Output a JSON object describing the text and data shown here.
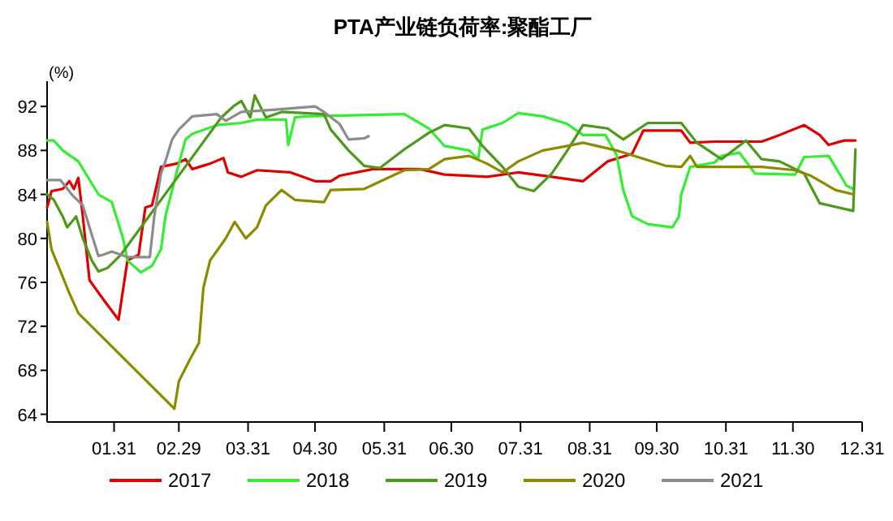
{
  "chart_data": {
    "type": "line",
    "title": "PTA产业链负荷率:聚酯工厂",
    "ylabel": "(%)",
    "xlim": [
      "--01-01",
      "--12-31"
    ],
    "xticks": [
      {
        "value": "--01-31",
        "label": "01.31"
      },
      {
        "value": "--02-29",
        "label": "02.29"
      },
      {
        "value": "--03-31",
        "label": "03.31"
      },
      {
        "value": "--04-30",
        "label": "04.30"
      },
      {
        "value": "--05-31",
        "label": "05.31"
      },
      {
        "value": "--06-30",
        "label": "06.30"
      },
      {
        "value": "--07-31",
        "label": "07.31"
      },
      {
        "value": "--08-31",
        "label": "08.31"
      },
      {
        "value": "--09-30",
        "label": "09.30"
      },
      {
        "value": "--10-31",
        "label": "10.31"
      },
      {
        "value": "--11-30",
        "label": "11.30"
      },
      {
        "value": "--12-31",
        "label": "12.31"
      }
    ],
    "ylim": [
      63.3,
      94.3
    ],
    "yticks": [
      64,
      68,
      72,
      76,
      80,
      84,
      88,
      92
    ],
    "legend": "bottom",
    "series": [
      {
        "name": "2017",
        "color": "#e00000",
        "x": [
          "--01-01",
          "--01-03",
          "--01-08",
          "--01-11",
          "--01-13",
          "--01-15",
          "--01-17",
          "--01-20",
          "--01-26",
          "--02-02",
          "--02-06",
          "--02-11",
          "--02-14",
          "--02-17",
          "--02-21",
          "--02-28",
          "--03-03",
          "--03-06",
          "--03-14",
          "--03-20",
          "--03-22",
          "--03-28",
          "--04-04",
          "--04-19",
          "--04-30",
          "--05-07",
          "--05-11",
          "--05-26",
          "--06-16",
          "--06-27",
          "--07-16",
          "--07-30",
          "--08-14",
          "--08-28",
          "--09-08",
          "--09-19",
          "--09-24",
          "--10-11",
          "--10-15",
          "--10-26",
          "--11-16",
          "--11-24",
          "--12-05",
          "--12-12",
          "--12-16",
          "--12-23",
          "--12-28"
        ],
        "values": [
          82.8,
          84.3,
          84.5,
          85.2,
          84.5,
          85.5,
          82,
          76.2,
          74.5,
          72.6,
          78,
          78.5,
          82.8,
          83,
          86.5,
          86.8,
          87.2,
          86.3,
          86.8,
          87.3,
          86,
          85.6,
          86.2,
          86,
          85.2,
          85.2,
          85.7,
          86.3,
          86.3,
          85.8,
          85.6,
          86,
          85.6,
          85.2,
          87,
          87.7,
          89.8,
          89.8,
          88.7,
          88.8,
          88.8,
          89.4,
          90.3,
          89.4,
          88.5,
          88.9,
          88.9
        ]
      },
      {
        "name": "2018",
        "color": "#33ee33",
        "x": [
          "--01-01",
          "--01-04",
          "--01-08",
          "--01-15",
          "--01-21",
          "--01-24",
          "--01-30",
          "--02-04",
          "--02-06",
          "--02-12",
          "--02-17",
          "--02-21",
          "--02-23",
          "--02-28",
          "--03-03",
          "--03-06",
          "--03-17",
          "--03-28",
          "--04-04",
          "--04-17",
          "--04-18",
          "--04-21",
          "--04-26",
          "--06-09",
          "--06-20",
          "--06-27",
          "--07-08",
          "--07-12",
          "--07-14",
          "--07-23",
          "--07-30",
          "--08-10",
          "--08-21",
          "--08-28",
          "--09-07",
          "--09-12",
          "--09-15",
          "--09-19",
          "--09-26",
          "--10-07",
          "--10-10",
          "--10-11",
          "--10-15",
          "--10-26",
          "--10-29",
          "--11-06",
          "--11-13",
          "--12-01",
          "--12-05",
          "--12-16",
          "--12-19",
          "--12-24",
          "--12-27"
        ],
        "values": [
          88.9,
          88.9,
          88,
          87,
          85,
          84,
          83.3,
          80,
          78,
          76.9,
          77.5,
          79,
          82,
          86,
          89,
          89.5,
          90.3,
          90.5,
          90.8,
          90.8,
          88.5,
          91,
          91.1,
          91.3,
          90,
          88.4,
          88,
          87.2,
          89.9,
          90.5,
          91.4,
          91.1,
          90.4,
          89.4,
          89.4,
          87.6,
          84.4,
          82,
          81.3,
          81,
          82,
          84,
          86.5,
          86.9,
          87.5,
          87.8,
          85.9,
          85.8,
          87.4,
          87.5,
          86.5,
          84.8,
          84.5
        ]
      },
      {
        "name": "2019",
        "color": "#4c9a1c",
        "x": [
          "--01-01",
          "--01-04",
          "--01-08",
          "--01-10",
          "--01-14",
          "--01-17",
          "--01-21",
          "--01-24",
          "--01-28",
          "--02-03",
          "--03-19",
          "--03-25",
          "--03-28",
          "--04-01",
          "--04-03",
          "--04-08",
          "--04-15",
          "--05-04",
          "--05-07",
          "--05-15",
          "--05-22",
          "--05-29",
          "--06-09",
          "--06-20",
          "--06-27",
          "--07-08",
          "--07-14",
          "--07-23",
          "--07-30",
          "--08-06",
          "--08-14",
          "--08-21",
          "--08-28",
          "--09-08",
          "--09-15",
          "--09-26",
          "--10-11",
          "--10-18",
          "--10-29",
          "--11-09",
          "--11-16",
          "--11-24",
          "--12-05",
          "--12-12",
          "--12-27",
          "--12-28"
        ],
        "values": [
          84,
          83.5,
          82,
          81,
          82,
          80,
          78,
          77,
          77.3,
          78.5,
          91,
          92.1,
          92.5,
          91,
          93,
          91,
          91.5,
          91.3,
          89.9,
          88,
          86.6,
          86.4,
          88.1,
          89.6,
          90.3,
          90,
          88.4,
          86.5,
          84.7,
          84.3,
          85.9,
          88,
          90.3,
          90,
          89,
          90.5,
          90.5,
          88.7,
          87.2,
          88.9,
          87.2,
          87,
          85.9,
          83.2,
          82.5,
          88.1
        ]
      },
      {
        "name": "2020",
        "color": "#8b8b00",
        "x": [
          "--01-01",
          "--01-03",
          "--01-07",
          "--01-11",
          "--01-15",
          "--02-27",
          "--02-29",
          "--03-05",
          "--03-09",
          "--03-11",
          "--03-14",
          "--03-21",
          "--03-25",
          "--03-30",
          "--04-04",
          "--04-08",
          "--04-15",
          "--04-21",
          "--05-04",
          "--05-07",
          "--05-22",
          "--06-09",
          "--06-20",
          "--06-27",
          "--07-08",
          "--07-16",
          "--07-23",
          "--07-30",
          "--08-10",
          "--08-21",
          "--08-28",
          "--09-12",
          "--09-23",
          "--10-04",
          "--10-11",
          "--10-15",
          "--10-18",
          "--10-29",
          "--11-16",
          "--12-01",
          "--12-08",
          "--12-19",
          "--12-27"
        ],
        "values": [
          81.5,
          79,
          77,
          75,
          73.2,
          64.5,
          67,
          69,
          70.5,
          75.5,
          78,
          80,
          81.5,
          80,
          81,
          83,
          84.4,
          83.5,
          83.3,
          84.4,
          84.5,
          86.2,
          86.3,
          87.2,
          87.5,
          86.8,
          86,
          87,
          88,
          88.4,
          88.7,
          88,
          87.3,
          86.6,
          86.5,
          87.5,
          86.5,
          86.5,
          86.5,
          86.2,
          85.7,
          84.4,
          84
        ]
      },
      {
        "name": "2021",
        "color": "#8c8c8c",
        "x": [
          "--01-01",
          "--01-07",
          "--01-12",
          "--01-17",
          "--01-20",
          "--01-24",
          "--01-26",
          "--01-30",
          "--02-06",
          "--02-16",
          "--02-18",
          "--02-21",
          "--02-23",
          "--02-26",
          "--02-29",
          "--03-06",
          "--03-17",
          "--03-21",
          "--03-28",
          "--04-12",
          "--04-30",
          "--05-04",
          "--05-11",
          "--05-15",
          "--05-22",
          "--05-24"
        ],
        "values": [
          85.3,
          85.3,
          84,
          83,
          81,
          78.4,
          78.5,
          78.8,
          78.3,
          78.3,
          82,
          85.9,
          87,
          89,
          89.9,
          91.1,
          91.3,
          90.7,
          91.5,
          91.7,
          92,
          91.5,
          90.4,
          89,
          89.1,
          89.3
        ]
      }
    ]
  }
}
